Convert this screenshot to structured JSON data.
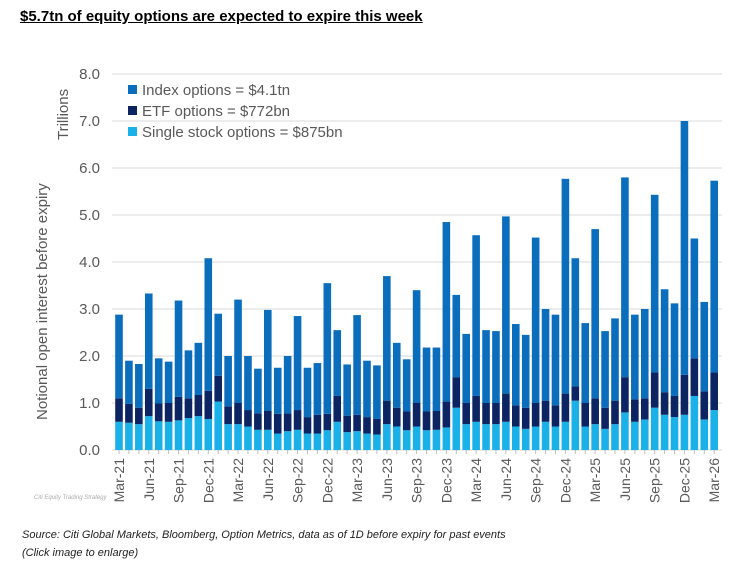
{
  "title": "$5.7tn of equity options are expected to expire this week",
  "source": "Source: Citi Global Markets, Bloomberg, Option Metrics, data as of 1D before expiry for past events",
  "note": "(Click image to enlarge)",
  "watermark": "Citi Equity Trading Strategy",
  "chart_data": {
    "type": "bar",
    "stacked": true,
    "ylabel": "Notional open interest before expiry",
    "yunit": "Trillions",
    "ylim": [
      0,
      8
    ],
    "yticks": [
      "0.0",
      "1.0",
      "2.0",
      "3.0",
      "4.0",
      "5.0",
      "6.0",
      "7.0",
      "8.0"
    ],
    "grid": true,
    "legend": "top-left",
    "start_month": "Mar-21",
    "tick_labels": [
      "Mar-21",
      "Jun-21",
      "Sep-21",
      "Dec-21",
      "Mar-22",
      "Jun-22",
      "Sep-22",
      "Dec-22",
      "Mar-23",
      "Jun-23",
      "Sep-23",
      "Dec-23",
      "Mar-24",
      "Jun-24",
      "Sep-24",
      "Dec-24",
      "Mar-25",
      "Jun-25",
      "Sep-25",
      "Dec-25",
      "Mar-26"
    ],
    "series": [
      {
        "name": "Single stock options = $875bn",
        "color": "#1ab0e8",
        "values": [
          0.6,
          0.58,
          0.55,
          0.72,
          0.61,
          0.6,
          0.63,
          0.68,
          0.72,
          0.66,
          1.03,
          0.55,
          0.55,
          0.5,
          0.43,
          0.43,
          0.35,
          0.4,
          0.43,
          0.35,
          0.35,
          0.42,
          0.6,
          0.38,
          0.4,
          0.35,
          0.33,
          0.55,
          0.5,
          0.42,
          0.5,
          0.42,
          0.43,
          0.48,
          0.9,
          0.55,
          0.6,
          0.55,
          0.55,
          0.6,
          0.5,
          0.45,
          0.5,
          0.6,
          0.5,
          0.6,
          1.05,
          0.5,
          0.55,
          0.45,
          0.55,
          0.8,
          0.6,
          0.65,
          0.9,
          0.75,
          0.7,
          0.75,
          1.15,
          0.65,
          0.85
        ]
      },
      {
        "name": "ETF options = $772bn",
        "color": "#0c2461",
        "values": [
          0.5,
          0.4,
          0.35,
          0.58,
          0.38,
          0.4,
          0.5,
          0.42,
          0.45,
          0.6,
          0.55,
          0.38,
          0.45,
          0.35,
          0.35,
          0.4,
          0.42,
          0.38,
          0.42,
          0.35,
          0.4,
          0.35,
          0.55,
          0.35,
          0.35,
          0.35,
          0.33,
          0.5,
          0.4,
          0.4,
          0.5,
          0.4,
          0.4,
          0.55,
          0.65,
          0.45,
          0.55,
          0.45,
          0.45,
          0.6,
          0.45,
          0.45,
          0.5,
          0.45,
          0.45,
          0.6,
          0.3,
          0.5,
          0.55,
          0.45,
          0.5,
          0.75,
          0.48,
          0.45,
          0.75,
          0.48,
          0.45,
          0.85,
          0.8,
          0.6,
          0.8
        ]
      },
      {
        "name": "Index options = $4.1tn",
        "color": "#0a6ebd",
        "values": [
          1.78,
          0.92,
          0.93,
          2.03,
          0.96,
          0.88,
          2.05,
          1.02,
          1.11,
          2.82,
          1.32,
          1.07,
          2.2,
          1.15,
          0.95,
          2.15,
          0.98,
          1.22,
          2.0,
          1.05,
          1.1,
          2.78,
          1.4,
          1.09,
          2.12,
          1.2,
          1.14,
          2.65,
          1.38,
          1.11,
          2.4,
          1.36,
          1.35,
          3.82,
          1.75,
          1.47,
          3.42,
          1.55,
          1.53,
          3.77,
          1.73,
          1.55,
          3.52,
          1.95,
          1.93,
          4.57,
          2.73,
          1.7,
          3.6,
          1.63,
          1.75,
          4.25,
          1.8,
          1.9,
          3.78,
          2.19,
          1.97,
          5.4,
          2.55,
          1.9,
          4.08
        ]
      }
    ]
  }
}
